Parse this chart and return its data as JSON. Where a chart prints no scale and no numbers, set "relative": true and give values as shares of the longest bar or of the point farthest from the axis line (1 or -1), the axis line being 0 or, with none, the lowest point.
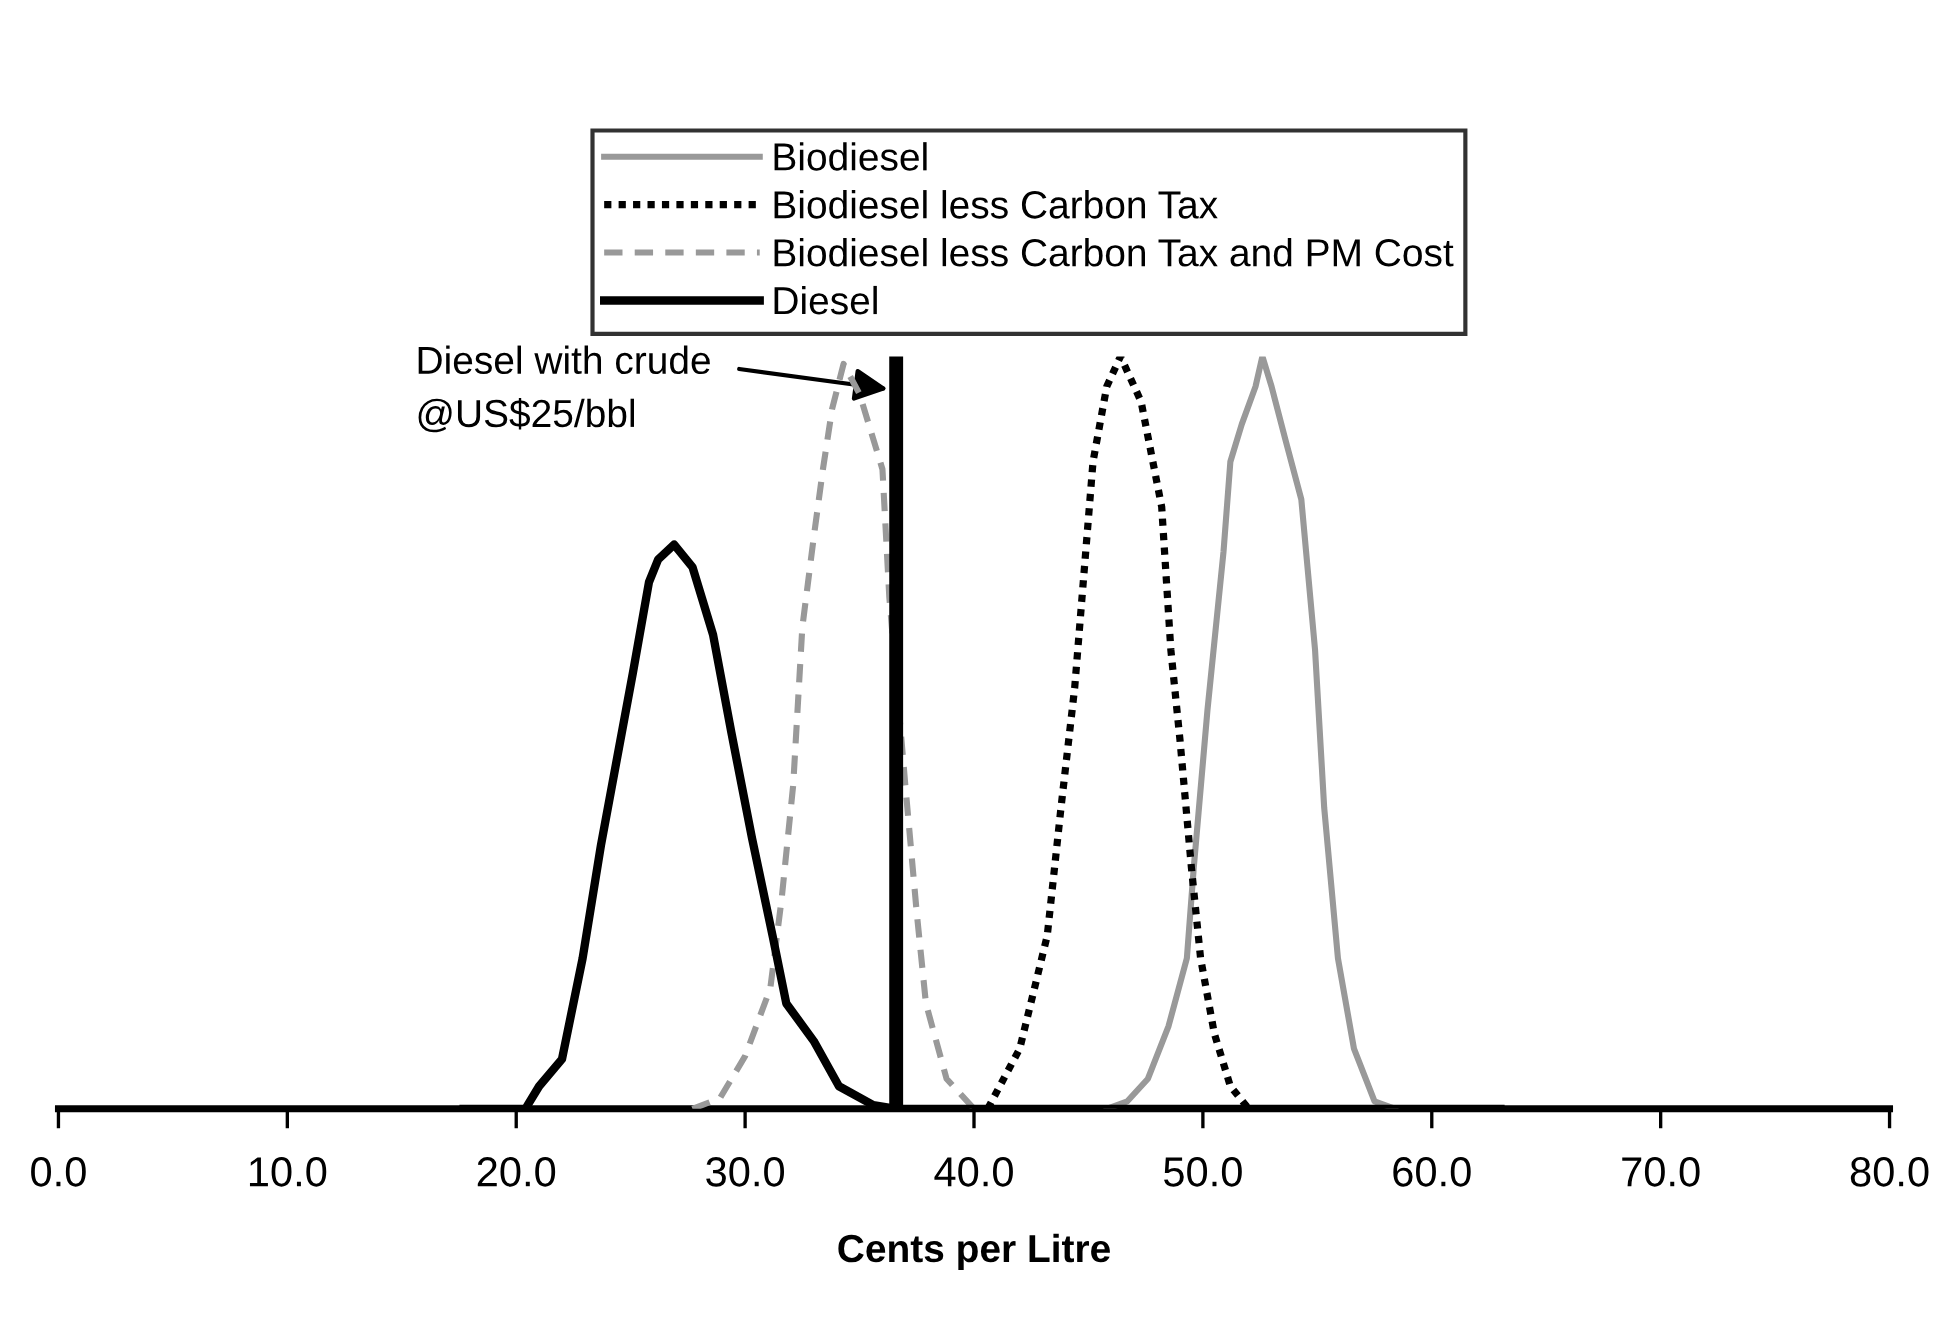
{
  "chart_data": {
    "type": "line",
    "relative": true,
    "xlabel": "Cents per Litre",
    "xlim": [
      0,
      80
    ],
    "xticks": [
      {
        "value": 0,
        "label": "0.0"
      },
      {
        "value": 10,
        "label": "10.0"
      },
      {
        "value": 20,
        "label": "20.0"
      },
      {
        "value": 30,
        "label": "30.0"
      },
      {
        "value": 40,
        "label": "40.0"
      },
      {
        "value": 50,
        "label": "50.0"
      },
      {
        "value": 60,
        "label": "60.0"
      },
      {
        "value": 70,
        "label": "70.0"
      },
      {
        "value": 80,
        "label": "80.0"
      }
    ],
    "tick_labels": "x",
    "grid": false,
    "legend": "top",
    "marker": "none",
    "series": [
      {
        "name": "Biodiesel",
        "color": "#999999",
        "line_style": "solid",
        "x": [
          45.8,
          46.7,
          47.6,
          48.5,
          49.3,
          49.6,
          50.2,
          50.9,
          51.2,
          51.7,
          52.3,
          52.6,
          53.0,
          53.6,
          54.3,
          54.9,
          55.3,
          55.9,
          56.6,
          57.5,
          58.4
        ],
        "values": [
          0,
          0.01,
          0.04,
          0.11,
          0.2,
          0.32,
          0.53,
          0.74,
          0.86,
          0.91,
          0.96,
          1.0,
          0.96,
          0.89,
          0.81,
          0.61,
          0.4,
          0.2,
          0.08,
          0.01,
          0
        ]
      },
      {
        "name": "Biodiesel less Carbon Tax",
        "color": "#000000",
        "line_style": "dotted",
        "x": [
          40.6,
          42.0,
          43.2,
          43.8,
          44.4,
          44.8,
          45.2,
          45.8,
          46.4,
          47.3,
          48.2,
          48.6,
          49.0,
          49.5,
          49.9,
          50.5,
          51.2,
          52.0
        ],
        "values": [
          0,
          0.08,
          0.23,
          0.4,
          0.56,
          0.71,
          0.86,
          0.96,
          1.0,
          0.94,
          0.8,
          0.61,
          0.49,
          0.32,
          0.2,
          0.1,
          0.03,
          0
        ]
      },
      {
        "name": "Biodiesel less Carbon Tax and PM Cost",
        "color": "#999999",
        "line_style": "dashed",
        "x": [
          27.7,
          28.9,
          30.0,
          31.1,
          31.6,
          32.1,
          32.5,
          33.0,
          33.4,
          33.8,
          34.3,
          35.0,
          36.0,
          36.3,
          37.0,
          37.5,
          37.9,
          38.8,
          40.0
        ],
        "values": [
          0,
          0.014,
          0.07,
          0.16,
          0.28,
          0.43,
          0.64,
          0.76,
          0.85,
          0.93,
          0.99,
          0.95,
          0.85,
          0.68,
          0.43,
          0.26,
          0.14,
          0.04,
          0
        ]
      },
      {
        "name": "Diesel",
        "color": "#000000",
        "line_style": "solid",
        "x": [
          17.7,
          20.4,
          21.0,
          22.0,
          22.9,
          23.7,
          25.1,
          25.8,
          26.2,
          26.9,
          27.7,
          28.6,
          29.4,
          30.3,
          31.2,
          31.8,
          33.0,
          34.1,
          35.6,
          36.6,
          63.0
        ],
        "values": [
          0,
          0,
          0.03,
          0.066,
          0.2,
          0.35,
          0.58,
          0.7,
          0.73,
          0.75,
          0.72,
          0.63,
          0.5,
          0.36,
          0.23,
          0.14,
          0.09,
          0.03,
          0.005,
          0,
          0
        ]
      }
    ],
    "ref_lines": [
      {
        "axis": "x",
        "value": 36.6,
        "label": "Diesel with crude\n@US$25/bbl",
        "color": "#000000",
        "line_style": "solid"
      }
    ]
  }
}
